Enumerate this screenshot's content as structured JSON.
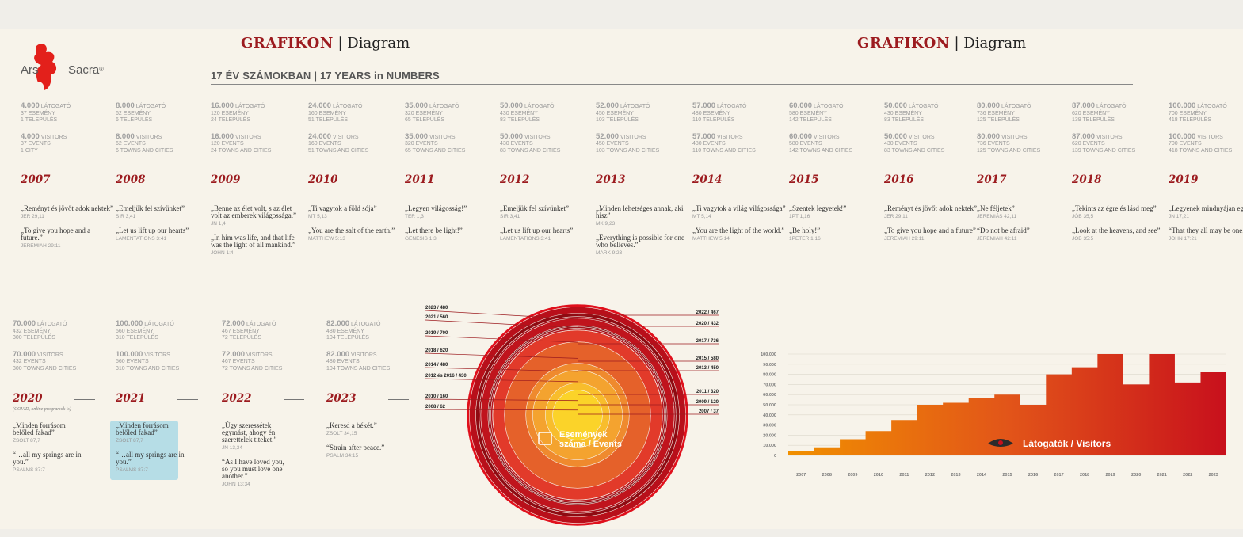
{
  "brand": {
    "name_part1": "Ars",
    "name_part2": "Sacra",
    "reg": "®"
  },
  "header": {
    "left": {
      "bold": "GRAFIKON",
      "rest": " | Diagram"
    },
    "right": {
      "bold": "GRAFIKON",
      "rest": " | Diagram"
    },
    "subtitle": "17 ÉV SZÁMOKBAN | 17 YEARS in NUMBERS"
  },
  "years": [
    {
      "year": "2007",
      "num": "4.000",
      "visitors_hu": "LÁTOGATÓ",
      "events_hu": "37 ESEMÉNY",
      "towns_hu": "1 TELEPÜLÉS",
      "visitors_en": "VISITORS",
      "events_en": "37 EVENTS",
      "towns_en": "1 CITY",
      "q1": "„Reményt és jövőt adok nektek”",
      "r1": "JER 29,11",
      "q2": "„To give you hope and a future.”",
      "r2": "JEREMIAH 29:11"
    },
    {
      "year": "2008",
      "num": "8.000",
      "visitors_hu": "LÁTOGATÓ",
      "events_hu": "62 ESEMÉNY",
      "towns_hu": "6 TELEPÜLÉS",
      "visitors_en": "VISITORS",
      "events_en": "62 EVENTS",
      "towns_en": "6 TOWNS AND CITIES",
      "q1": "„Emeljük fel szívünket”",
      "r1": "SIR 3,41",
      "q2": "„Let us lift up our hearts”",
      "r2": "LAMENTATIONS 3:41"
    },
    {
      "year": "2009",
      "num": "16.000",
      "visitors_hu": "LÁTOGATÓ",
      "events_hu": "120 ESEMÉNY",
      "towns_hu": "24 TELEPÜLÉS",
      "visitors_en": "VISITORS",
      "events_en": "120 EVENTS",
      "towns_en": "24 TOWNS AND CITIES",
      "q1": "„Benne az élet volt, s az élet volt az emberek világossága.”",
      "r1": "JN 1,4",
      "q2": "„In him was life, and that life was the light of all mankind.”",
      "r2": "JOHN 1:4"
    },
    {
      "year": "2010",
      "num": "24.000",
      "visitors_hu": "LÁTOGATÓ",
      "events_hu": "160 ESEMÉNY",
      "towns_hu": "51 TELEPÜLÉS",
      "visitors_en": "VISITORS",
      "events_en": "160 EVENTS",
      "towns_en": "51 TOWNS AND CITIES",
      "q1": "„Ti vagytok a föld sója”",
      "r1": "MT 5,13",
      "q2": "„You are the salt of the earth.”",
      "r2": "MATTHEW 5:13"
    },
    {
      "year": "2011",
      "num": "35.000",
      "visitors_hu": "LÁTOGATÓ",
      "events_hu": "320 ESEMÉNY",
      "towns_hu": "65 TELEPÜLÉS",
      "visitors_en": "VISITORS",
      "events_en": "320 EVENTS",
      "towns_en": "65 TOWNS AND CITIES",
      "q1": "„Legyen világosság!”",
      "r1": "TER 1,3",
      "q2": "„Let there be light!”",
      "r2": "GENESIS 1:3"
    },
    {
      "year": "2012",
      "num": "50.000",
      "visitors_hu": "LÁTOGATÓ",
      "events_hu": "430 ESEMÉNY",
      "towns_hu": "83 TELEPÜLÉS",
      "visitors_en": "VISITORS",
      "events_en": "430 EVENTS",
      "towns_en": "83 TOWNS AND CITIES",
      "q1": "„Emeljük fel szívünket”",
      "r1": "SIR 3,41",
      "q2": "„Let us lift up our hearts”",
      "r2": "LAMENTATIONS 3:41"
    },
    {
      "year": "2013",
      "num": "52.000",
      "visitors_hu": "LÁTOGATÓ",
      "events_hu": "450 ESEMÉNY",
      "towns_hu": "103 TELEPÜLÉS",
      "visitors_en": "VISITORS",
      "events_en": "450 EVENTS",
      "towns_en": "103 TOWNS AND CITIES",
      "q1": "„Minden lehetséges annak, aki hisz”",
      "r1": "MK 9,23",
      "q2": "„Everything is possible for one who believes.”",
      "r2": "MARK 9:23"
    },
    {
      "year": "2014",
      "num": "57.000",
      "visitors_hu": "LÁTOGATÓ",
      "events_hu": "480 ESEMÉNY",
      "towns_hu": "110 TELEPÜLÉS",
      "visitors_en": "VISITORS",
      "events_en": "480 EVENTS",
      "towns_en": "110 TOWNS AND CITIES",
      "q1": "„Ti vagytok a világ világossága”",
      "r1": "MT 5,14",
      "q2": "„You are the light of the world.”",
      "r2": "MATTHEW 5:14"
    },
    {
      "year": "2015",
      "num": "60.000",
      "visitors_hu": "LÁTOGATÓ",
      "events_hu": "580 ESEMÉNY",
      "towns_hu": "142 TELEPÜLÉS",
      "visitors_en": "VISITORS",
      "events_en": "580 EVENTS",
      "towns_en": "142 TOWNS AND CITIES",
      "q1": "„Szentek legyetek!”",
      "r1": "1PT 1,16",
      "q2": "„Be holy!”",
      "r2": "1PETER 1:16"
    },
    {
      "year": "2016",
      "num": "50.000",
      "visitors_hu": "LÁTOGATÓ",
      "events_hu": "430 ESEMÉNY",
      "towns_hu": "83 TELEPÜLÉS",
      "visitors_en": "VISITORS",
      "events_en": "430 EVENTS",
      "towns_en": "83 TOWNS AND CITIES",
      "q1": "„Reményt és jövőt adok nektek”",
      "r1": "JER 29,11",
      "q2": "„To give you hope and a future”",
      "r2": "JEREMIAH 29:11"
    },
    {
      "year": "2017",
      "num": "80.000",
      "visitors_hu": "LÁTOGATÓ",
      "events_hu": "736 ESEMÉNY",
      "towns_hu": "125 TELEPÜLÉS",
      "visitors_en": "VISITORS",
      "events_en": "736 EVENTS",
      "towns_en": "125 TOWNS AND CITIES",
      "q1": "„Ne féljetek”",
      "r1": "JEREMIÁS 42,11",
      "q2": "“Do not be afraid”",
      "r2": "JEREMIAH 42:11"
    },
    {
      "year": "2018",
      "num": "87.000",
      "visitors_hu": "LÁTOGATÓ",
      "events_hu": "620 ESEMÉNY",
      "towns_hu": "139 TELEPÜLÉS",
      "visitors_en": "VISITORS",
      "events_en": "620 EVENTS",
      "towns_en": "139 TOWNS AND CITIES",
      "q1": "„Tekints az égre és lásd meg”",
      "r1": "JÓB 35,5",
      "q2": "„Look at the heavens, and see”",
      "r2": "JOB 35:5"
    },
    {
      "year": "2019",
      "num": "100.000",
      "visitors_hu": "LÁTOGATÓ",
      "events_hu": "700 ESEMÉNY",
      "towns_hu": "418 TELEPÜLÉS",
      "visitors_en": "VISITORS",
      "events_en": "700 EVENTS",
      "towns_en": "418 TOWNS AND CITIES",
      "q1": "„Legyenek mindnyájan egyek.”",
      "r1": "JN 17,21",
      "q2": "“That they all may be one.”",
      "r2": "JOHN 17:21"
    },
    {
      "year": "2020",
      "num": "70.000",
      "visitors_hu": "LÁTOGATÓ",
      "events_hu": "432 ESEMÉNY",
      "towns_hu": "300 TELEPÜLÉS",
      "visitors_en": "VISITORS",
      "events_en": "432 EVENTS",
      "towns_en": "300 TOWNS AND CITIES",
      "q1": "„Minden forrásom belőled fakad”",
      "r1": "ZSOLT 87,7",
      "q2": "“…all my springs are in you.”",
      "r2": "PSALMS 87:7"
    },
    {
      "year": "2021",
      "num": "100.000",
      "visitors_hu": "LÁTOGATÓ",
      "events_hu": "560 ESEMÉNY",
      "towns_hu": "310 TELEPÜLÉS",
      "visitors_en": "VISITORS",
      "events_en": "560 EVENTS",
      "towns_en": "310 TOWNS AND CITIES",
      "q1": "„Minden forrásom belőled fakad”",
      "r1": "Zsolt 87,7",
      "q2": "“…all my springs are in you.”",
      "r2": "Psalms 87:7"
    },
    {
      "year": "2022",
      "num": "72.000",
      "visitors_hu": "LÁTOGATÓ",
      "events_hu": "467 ESEMÉNY",
      "towns_hu": "72 TELEPÜLÉS",
      "visitors_en": "VISITORS",
      "events_en": "467 EVENTS",
      "towns_en": "72 TOWNS AND CITIES",
      "q1": "„Úgy szeressétek egymást, ahogy én szerettelek titeket.”",
      "r1": "JN 13,34",
      "q2": "“As I have loved you, so you must love one another.”",
      "r2": "JOHN 13:34"
    },
    {
      "year": "2023",
      "num": "82.000",
      "visitors_hu": "LÁTOGATÓ",
      "events_hu": "480 ESEMÉNY",
      "towns_hu": "104 TELEPÜLÉS",
      "visitors_en": "VISITORS",
      "events_en": "480 EVENTS",
      "towns_en": "104 TOWNS AND CITIES",
      "q1": "„Keresd a békét.”",
      "r1": "ZSOLT 34,15",
      "q2": "“Strain after peace.”",
      "r2": "PSALM 34:15"
    }
  ],
  "covid_note": "(COVID, online programok is)",
  "colors": {
    "accent": "#9c1b1f",
    "orange": "#f08a00",
    "red": "#c8101c"
  },
  "chart_data": [
    {
      "type": "bubble-rings",
      "title": "Események száma / Events",
      "labels_left": [
        "2023 / 480",
        "2021 / 560",
        "2019 / 700",
        "2018 / 620",
        "2014 / 480",
        "2012 és 2016 / 430",
        "2010 / 160",
        "2008 / 62"
      ],
      "labels_right": [
        "2022 / 467",
        "2020 / 432",
        "2017 / 736",
        "2015 / 580",
        "2013 / 450",
        "2011 / 320",
        "2009 / 120",
        "2007 / 37"
      ],
      "rings": [
        736,
        700,
        620,
        580,
        560,
        480,
        467,
        450,
        432,
        430,
        320,
        160,
        120,
        62,
        37
      ]
    },
    {
      "type": "area",
      "title": "Látogatók / Visitors",
      "categories": [
        "2007",
        "2008",
        "2009",
        "2010",
        "2011",
        "2012",
        "2013",
        "2014",
        "2015",
        "2016",
        "2017",
        "2018",
        "2019",
        "2020",
        "2021",
        "2022",
        "2023"
      ],
      "values": [
        4000,
        8000,
        16000,
        24000,
        35000,
        50000,
        52000,
        57000,
        60000,
        50000,
        80000,
        87000,
        100000,
        70000,
        100000,
        72000,
        82000
      ],
      "yticks": [
        "0",
        "10.000",
        "20.000",
        "30.000",
        "40.000",
        "50.000",
        "60.000",
        "70.000",
        "80.000",
        "90.000",
        "100.000"
      ],
      "ylim": [
        0,
        100000
      ]
    }
  ]
}
